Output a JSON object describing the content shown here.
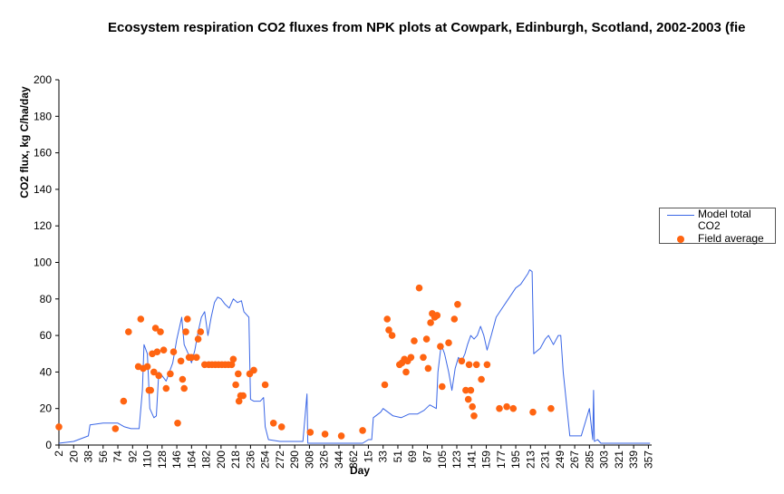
{
  "chart_data": {
    "type": "line",
    "title": "Ecosystem respiration CO2 fluxes from NPK plots at Cowpark, Edinburgh, Scotland, 2002-2003 (fie",
    "xlabel": "Day",
    "ylabel": "CO2 flux, kg C/ha/day",
    "ylim": [
      0,
      200
    ],
    "yticks": [
      "0",
      "20",
      "40",
      "60",
      "80",
      "100",
      "120",
      "140",
      "160",
      "180",
      "200"
    ],
    "xticks": [
      "2",
      "20",
      "38",
      "56",
      "74",
      "92",
      "110",
      "128",
      "146",
      "164",
      "182",
      "200",
      "218",
      "236",
      "254",
      "272",
      "290",
      "308",
      "326",
      "344",
      "362",
      "15",
      "33",
      "51",
      "69",
      "87",
      "105",
      "123",
      "141",
      "159",
      "177",
      "195",
      "213",
      "231",
      "249",
      "267",
      "285",
      "303",
      "321",
      "339",
      "357"
    ],
    "x_note": "sequential days from day 2 (2002) through day 364 (2003); axis wraps at new year",
    "grid": false,
    "legend_position": "right",
    "series": [
      {
        "name": "Model total CO2",
        "kind": "line",
        "color": "#3a66e6",
        "points": [
          [
            2,
            1
          ],
          [
            20,
            2
          ],
          [
            38,
            5
          ],
          [
            40,
            11
          ],
          [
            56,
            12
          ],
          [
            74,
            12
          ],
          [
            82,
            10
          ],
          [
            90,
            9
          ],
          [
            100,
            9
          ],
          [
            104,
            30
          ],
          [
            106,
            55
          ],
          [
            110,
            50
          ],
          [
            113,
            20
          ],
          [
            118,
            15
          ],
          [
            121,
            16
          ],
          [
            124,
            40
          ],
          [
            128,
            38
          ],
          [
            133,
            35
          ],
          [
            137,
            40
          ],
          [
            141,
            45
          ],
          [
            146,
            58
          ],
          [
            152,
            70
          ],
          [
            155,
            55
          ],
          [
            160,
            50
          ],
          [
            164,
            45
          ],
          [
            168,
            52
          ],
          [
            172,
            62
          ],
          [
            176,
            70
          ],
          [
            180,
            73
          ],
          [
            184,
            60
          ],
          [
            188,
            70
          ],
          [
            192,
            78
          ],
          [
            196,
            81
          ],
          [
            200,
            80
          ],
          [
            205,
            77
          ],
          [
            210,
            75
          ],
          [
            215,
            80
          ],
          [
            220,
            78
          ],
          [
            225,
            79
          ],
          [
            228,
            73
          ],
          [
            234,
            70
          ],
          [
            236,
            25
          ],
          [
            240,
            24
          ],
          [
            248,
            24
          ],
          [
            252,
            26
          ],
          [
            254,
            10
          ],
          [
            258,
            3
          ],
          [
            272,
            2
          ],
          [
            290,
            2
          ],
          [
            300,
            2
          ],
          [
            305,
            28
          ],
          [
            306,
            1
          ],
          [
            310,
            1
          ],
          [
            326,
            1
          ],
          [
            344,
            1
          ],
          [
            362,
            1
          ],
          [
            367,
            1
          ],
          [
            373,
            1
          ],
          [
            380,
            3
          ],
          [
            384,
            3
          ],
          [
            386,
            15
          ],
          [
            395,
            18
          ],
          [
            398,
            20
          ],
          [
            410,
            16
          ],
          [
            420,
            15
          ],
          [
            430,
            17
          ],
          [
            440,
            17
          ],
          [
            448,
            19
          ],
          [
            455,
            22
          ],
          [
            463,
            20
          ],
          [
            465,
            40
          ],
          [
            469,
            55
          ],
          [
            473,
            50
          ],
          [
            478,
            40
          ],
          [
            482,
            30
          ],
          [
            486,
            42
          ],
          [
            490,
            48
          ],
          [
            494,
            46
          ],
          [
            498,
            50
          ],
          [
            501,
            55
          ],
          [
            505,
            60
          ],
          [
            509,
            58
          ],
          [
            513,
            60
          ],
          [
            517,
            65
          ],
          [
            521,
            60
          ],
          [
            525,
            52
          ],
          [
            530,
            60
          ],
          [
            536,
            70
          ],
          [
            542,
            74
          ],
          [
            548,
            78
          ],
          [
            554,
            82
          ],
          [
            560,
            86
          ],
          [
            566,
            88
          ],
          [
            572,
            92
          ],
          [
            575,
            94
          ],
          [
            577,
            96
          ],
          [
            580,
            95
          ],
          [
            582,
            50
          ],
          [
            590,
            53
          ],
          [
            596,
            58
          ],
          [
            600,
            60
          ],
          [
            606,
            55
          ],
          [
            612,
            60
          ],
          [
            615,
            60
          ],
          [
            618,
            40
          ],
          [
            626,
            5
          ],
          [
            640,
            5
          ],
          [
            650,
            20
          ],
          [
            654,
            3
          ],
          [
            655,
            30
          ],
          [
            656,
            2
          ],
          [
            660,
            3
          ],
          [
            664,
            1
          ],
          [
            680,
            1
          ],
          [
            700,
            1
          ],
          [
            720,
            1
          ],
          [
            724,
            1
          ]
        ]
      },
      {
        "name": "Field average",
        "kind": "scatter",
        "color": "#ff6411",
        "points": [
          [
            2,
            10
          ],
          [
            71,
            9
          ],
          [
            81,
            24
          ],
          [
            87,
            62
          ],
          [
            99,
            43
          ],
          [
            102,
            69
          ],
          [
            105,
            42
          ],
          [
            110,
            43
          ],
          [
            112,
            30
          ],
          [
            114,
            30
          ],
          [
            116,
            50
          ],
          [
            118,
            40
          ],
          [
            120,
            64
          ],
          [
            122,
            51
          ],
          [
            124,
            38
          ],
          [
            126,
            62
          ],
          [
            130,
            52
          ],
          [
            133,
            31
          ],
          [
            138,
            39
          ],
          [
            142,
            51
          ],
          [
            147,
            12
          ],
          [
            151,
            46
          ],
          [
            153,
            36
          ],
          [
            155,
            31
          ],
          [
            157,
            62
          ],
          [
            159,
            69
          ],
          [
            161,
            48
          ],
          [
            164,
            48
          ],
          [
            170,
            48
          ],
          [
            172,
            58
          ],
          [
            175,
            62
          ],
          [
            180,
            44
          ],
          [
            185,
            44
          ],
          [
            189,
            44
          ],
          [
            193,
            44
          ],
          [
            197,
            44
          ],
          [
            201,
            44
          ],
          [
            205,
            44
          ],
          [
            209,
            44
          ],
          [
            213,
            44
          ],
          [
            215,
            47
          ],
          [
            218,
            33
          ],
          [
            221,
            39
          ],
          [
            222,
            24
          ],
          [
            224,
            27
          ],
          [
            227,
            27
          ],
          [
            235,
            39
          ],
          [
            240,
            41
          ],
          [
            254,
            33
          ],
          [
            264,
            12
          ],
          [
            274,
            10
          ],
          [
            309,
            7
          ],
          [
            327,
            6
          ],
          [
            347,
            5
          ],
          [
            373,
            8
          ],
          [
            400,
            33
          ],
          [
            403,
            69
          ],
          [
            405,
            63
          ],
          [
            409,
            60
          ],
          [
            418,
            44
          ],
          [
            421,
            45
          ],
          [
            424,
            47
          ],
          [
            426,
            40
          ],
          [
            428,
            46
          ],
          [
            432,
            48
          ],
          [
            436,
            57
          ],
          [
            442,
            86
          ],
          [
            447,
            48
          ],
          [
            451,
            58
          ],
          [
            453,
            42
          ],
          [
            456,
            67
          ],
          [
            458,
            72
          ],
          [
            461,
            70
          ],
          [
            464,
            71
          ],
          [
            468,
            54
          ],
          [
            470,
            32
          ],
          [
            478,
            56
          ],
          [
            485,
            69
          ],
          [
            489,
            77
          ],
          [
            494,
            46
          ],
          [
            499,
            30
          ],
          [
            502,
            25
          ],
          [
            503,
            44
          ],
          [
            505,
            30
          ],
          [
            507,
            21
          ],
          [
            509,
            16
          ],
          [
            512,
            44
          ],
          [
            518,
            36
          ],
          [
            525,
            44
          ],
          [
            540,
            20
          ],
          [
            549,
            21
          ],
          [
            557,
            20
          ],
          [
            581,
            18
          ],
          [
            603,
            20
          ]
        ]
      }
    ]
  },
  "legend": {
    "model_label": "Model total CO2",
    "field_label": "Field average"
  }
}
